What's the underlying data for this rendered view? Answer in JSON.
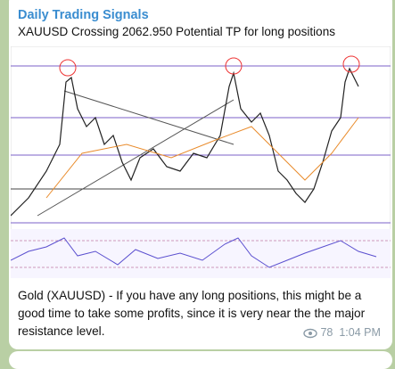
{
  "header": {
    "title": "Daily Trading Signals",
    "subtitle": "XAUUSD Crossing 2062.950 Potential TP for long positions"
  },
  "message": {
    "text": "Gold (XAUUSD) - If you have any long positions, this might be a good time to take some profits, since it is very near the the major resistance level.",
    "views": "78",
    "time": "1:04 PM"
  }
}
